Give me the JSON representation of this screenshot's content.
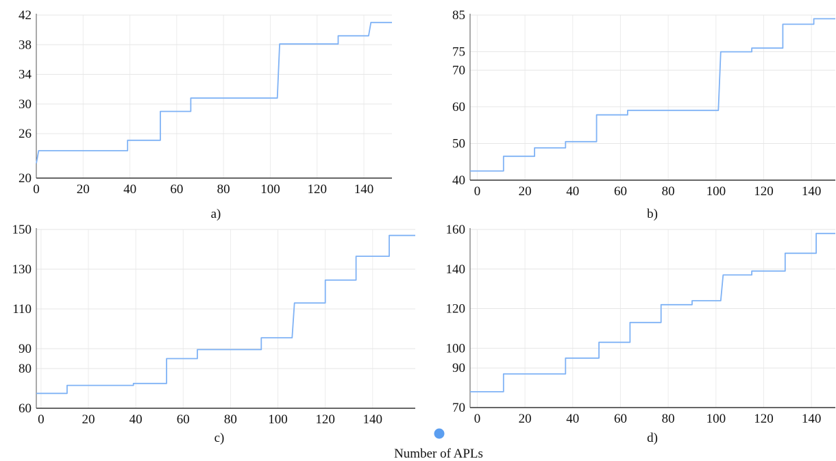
{
  "chart_data": [
    {
      "type": "line",
      "panel": "a)",
      "xticks": [
        0,
        20,
        40,
        60,
        80,
        100,
        120,
        140
      ],
      "yticks": [
        20,
        26,
        30,
        34,
        38,
        42
      ],
      "xlim": [
        0,
        152
      ],
      "ylim": [
        20,
        42
      ],
      "grid": true,
      "series": [
        {
          "color": "#7fb2f5",
          "x": [
            0,
            1,
            39,
            39,
            53,
            53,
            66,
            66,
            103,
            104,
            129,
            129,
            142,
            143,
            152
          ],
          "y": [
            22,
            23.7,
            23.7,
            25.1,
            25.1,
            29,
            29,
            30.8,
            30.8,
            38.1,
            38.1,
            39.2,
            39.2,
            41,
            41
          ]
        }
      ]
    },
    {
      "type": "line",
      "panel": "b)",
      "xticks": [
        0,
        20,
        40,
        60,
        80,
        100,
        120,
        140
      ],
      "yticks": [
        40,
        50,
        60,
        70,
        75,
        85
      ],
      "xlim": [
        -3,
        150
      ],
      "ylim": [
        40,
        85
      ],
      "grid": true,
      "series": [
        {
          "color": "#7fb2f5",
          "x": [
            -3,
            11,
            11,
            24,
            24,
            37,
            37,
            50,
            50,
            63,
            63,
            101,
            102,
            115,
            115,
            128,
            128,
            141,
            141,
            150
          ],
          "y": [
            42.5,
            42.5,
            46.5,
            46.5,
            48.8,
            48.8,
            50.5,
            50.5,
            57.8,
            57.8,
            59,
            59,
            75,
            75,
            76,
            76,
            82.5,
            82.5,
            84,
            84
          ]
        }
      ]
    },
    {
      "type": "line",
      "panel": "c)",
      "xticks": [
        0,
        20,
        40,
        60,
        80,
        100,
        120,
        140
      ],
      "yticks": [
        60,
        80,
        90,
        110,
        130,
        150
      ],
      "xlim": [
        -2,
        158
      ],
      "ylim": [
        60,
        150
      ],
      "grid": true,
      "series": [
        {
          "color": "#7fb2f5",
          "x": [
            -2,
            11,
            11,
            39,
            39,
            53,
            53,
            66,
            66,
            93,
            93,
            106,
            107,
            120,
            120,
            133,
            133,
            147,
            147,
            158
          ],
          "y": [
            67.5,
            67.5,
            71.5,
            71.5,
            72.5,
            72.5,
            85,
            85,
            89.5,
            89.5,
            95.5,
            95.5,
            113,
            113,
            124.5,
            124.5,
            136.5,
            136.5,
            147,
            147
          ]
        }
      ]
    },
    {
      "type": "line",
      "panel": "d)",
      "xticks": [
        0,
        20,
        40,
        60,
        80,
        100,
        120,
        140
      ],
      "yticks": [
        70,
        90,
        100,
        120,
        140,
        160
      ],
      "xlim": [
        -3,
        150
      ],
      "ylim": [
        70,
        160
      ],
      "grid": true,
      "series": [
        {
          "color": "#7fb2f5",
          "x": [
            -3,
            11,
            11,
            37,
            37,
            51,
            51,
            64,
            64,
            77,
            77,
            90,
            90,
            102,
            103,
            115,
            115,
            129,
            129,
            142,
            142,
            150
          ],
          "y": [
            78,
            78,
            87,
            87,
            95,
            95,
            103,
            103,
            113,
            113,
            122,
            122,
            124,
            124,
            137,
            137,
            139,
            139,
            148,
            148,
            158,
            158
          ]
        }
      ]
    }
  ],
  "panel_labels": [
    "a)",
    "b)",
    "c)",
    "d)"
  ],
  "legend": {
    "label": "Number of APLs",
    "marker_color": "#5b9ef0"
  }
}
